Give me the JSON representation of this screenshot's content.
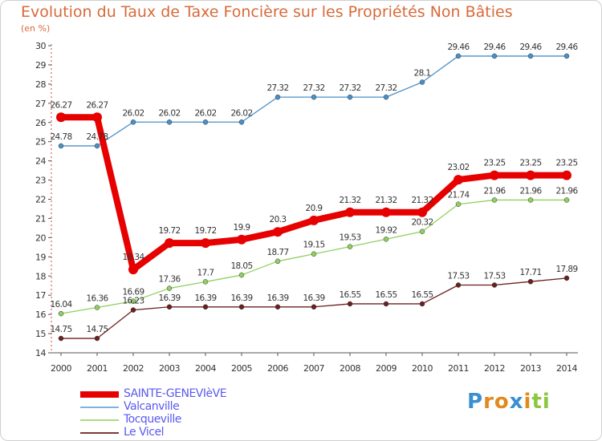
{
  "chart_data": {
    "type": "line",
    "title": "Evolution du Taux de Taxe Foncière sur les Propriétés Non Bâties",
    "unit_label": "(en %)",
    "x": [
      "2000",
      "2001",
      "2002",
      "2003",
      "2004",
      "2005",
      "2006",
      "2007",
      "2008",
      "2009",
      "2010",
      "2011",
      "2012",
      "2013",
      "2014"
    ],
    "ylim": [
      14,
      30
    ],
    "yticks": [
      14,
      15,
      16,
      17,
      18,
      19,
      20,
      21,
      22,
      23,
      24,
      25,
      26,
      27,
      28,
      29,
      30
    ],
    "grid": false,
    "series": [
      {
        "name": "SAINTE-GENEVIèVE",
        "color": "#e60000",
        "values": [
          26.27,
          26.27,
          18.34,
          19.72,
          19.72,
          19.9,
          20.3,
          20.9,
          21.32,
          21.32,
          21.32,
          23.02,
          23.25,
          23.25,
          23.25
        ],
        "labels": [
          "26.27",
          "26.27",
          "18.34",
          "19.72",
          "19.72",
          "19.9",
          "20.3",
          "20.9",
          "21.32",
          "21.32",
          "21.32",
          "23.02",
          "23.25",
          "23.25",
          "23.25"
        ]
      },
      {
        "name": "Valcanville",
        "color": "#4a90c8",
        "values": [
          24.78,
          24.78,
          26.02,
          26.02,
          26.02,
          26.02,
          27.32,
          27.32,
          27.32,
          27.32,
          28.1,
          29.46,
          29.46,
          29.46,
          29.46
        ],
        "labels": [
          "24.78",
          "24.78",
          "26.02",
          "26.02",
          "26.02",
          "26.02",
          "27.32",
          "27.32",
          "27.32",
          "27.32",
          "28.1",
          "29.46",
          "29.46",
          "29.46",
          "29.46"
        ]
      },
      {
        "name": "Tocqueville",
        "color": "#90d060",
        "values": [
          16.04,
          16.36,
          16.69,
          17.36,
          17.7,
          18.05,
          18.77,
          19.15,
          19.53,
          19.92,
          20.32,
          21.74,
          21.96,
          21.96,
          21.96
        ],
        "labels": [
          "16.04",
          "16.36",
          "16.69",
          "17.36",
          "17.7",
          "18.05",
          "18.77",
          "19.15",
          "19.53",
          "19.92",
          "20.32",
          "21.74",
          "21.96",
          "21.96",
          "21.96"
        ]
      },
      {
        "name": "Le Vicel",
        "color": "#6b1f1f",
        "values": [
          14.75,
          14.75,
          16.23,
          16.39,
          16.39,
          16.39,
          16.39,
          16.39,
          16.55,
          16.55,
          16.55,
          17.53,
          17.53,
          17.71,
          17.89
        ],
        "labels": [
          "14.75",
          "14.75",
          "16.23",
          "16.39",
          "16.39",
          "16.39",
          "16.39",
          "16.39",
          "16.55",
          "16.55",
          "16.55",
          "17.53",
          "17.53",
          "17.71",
          "17.89"
        ]
      }
    ]
  },
  "legend": [
    {
      "label": "SAINTE-GENEVIèVE",
      "color": "#e60000"
    },
    {
      "label": "Valcanville",
      "color": "#7fb2dc"
    },
    {
      "label": "Tocqueville",
      "color": "#a8dc80"
    },
    {
      "label": "Le Vicel",
      "color": "#7a3a3a"
    }
  ],
  "logo": {
    "letters": [
      "P",
      "r",
      "o",
      "x",
      "i",
      "t",
      "i"
    ],
    "colors": [
      "#3a8fd0",
      "#e08a20",
      "#e08a20",
      "#3a8fd0",
      "#e08a20",
      "#8cc63f",
      "#8cc63f"
    ]
  }
}
